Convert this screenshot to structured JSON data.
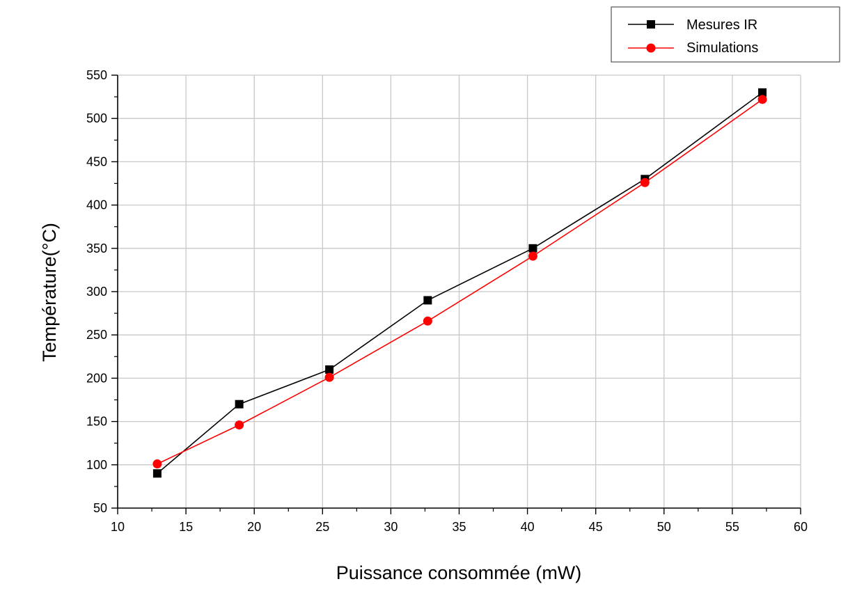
{
  "chart_data": {
    "type": "line",
    "title": "",
    "xlabel": "Puissance consommée (mW)",
    "ylabel": "Température(°C)",
    "xlim": [
      10,
      60
    ],
    "ylim": [
      50,
      550
    ],
    "xticks": [
      10,
      15,
      20,
      25,
      30,
      35,
      40,
      45,
      50,
      55,
      60
    ],
    "yticks": [
      50,
      100,
      150,
      200,
      250,
      300,
      350,
      400,
      450,
      500,
      550
    ],
    "grid": true,
    "legend_position": "top-right",
    "series": [
      {
        "name": "Mesures IR",
        "color": "#000000",
        "marker": "square",
        "x": [
          12.9,
          18.9,
          25.5,
          32.7,
          40.4,
          48.6,
          57.2
        ],
        "y": [
          90,
          170,
          210,
          290,
          350,
          430,
          530
        ]
      },
      {
        "name": "Simulations",
        "color": "#ff0000",
        "marker": "circle",
        "x": [
          12.9,
          18.9,
          25.5,
          32.7,
          40.4,
          48.6,
          57.2
        ],
        "y": [
          101,
          146,
          201,
          266,
          341,
          426,
          522
        ]
      }
    ]
  }
}
